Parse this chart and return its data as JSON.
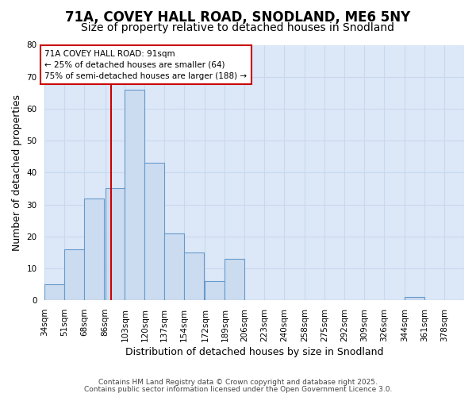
{
  "title1": "71A, COVEY HALL ROAD, SNODLAND, ME6 5NY",
  "title2": "Size of property relative to detached houses in Snodland",
  "xlabel": "Distribution of detached houses by size in Snodland",
  "ylabel": "Number of detached properties",
  "bin_labels": [
    "34sqm",
    "51sqm",
    "68sqm",
    "86sqm",
    "103sqm",
    "120sqm",
    "137sqm",
    "154sqm",
    "172sqm",
    "189sqm",
    "206sqm",
    "223sqm",
    "240sqm",
    "258sqm",
    "275sqm",
    "292sqm",
    "309sqm",
    "326sqm",
    "344sqm",
    "361sqm",
    "378sqm"
  ],
  "bin_left_edges": [
    34,
    51,
    68,
    86,
    103,
    120,
    137,
    154,
    172,
    189,
    206,
    223,
    240,
    258,
    275,
    292,
    309,
    326,
    344,
    361,
    378
  ],
  "bin_widths": [
    17,
    17,
    17,
    17,
    17,
    17,
    17,
    17,
    17,
    17,
    17,
    17,
    17,
    17,
    17,
    17,
    17,
    17,
    17,
    17,
    17
  ],
  "bar_heights": [
    5,
    16,
    32,
    35,
    66,
    43,
    21,
    15,
    6,
    13,
    0,
    0,
    0,
    0,
    0,
    0,
    0,
    0,
    1,
    0,
    0
  ],
  "bar_color": "#ccdcf0",
  "bar_edge_color": "#6699cc",
  "property_size": 91,
  "vline_color": "#cc0000",
  "annotation_line1": "71A COVEY HALL ROAD: 91sqm",
  "annotation_line2": "← 25% of detached houses are smaller (64)",
  "annotation_line3": "75% of semi-detached houses are larger (188) →",
  "annotation_box_facecolor": "#ffffff",
  "annotation_box_edgecolor": "#cc0000",
  "ylim": [
    0,
    80
  ],
  "yticks": [
    0,
    10,
    20,
    30,
    40,
    50,
    60,
    70,
    80
  ],
  "grid_color": "#c8d8ee",
  "plot_bg_color": "#dce8f8",
  "figure_bg_color": "#ffffff",
  "footer1": "Contains HM Land Registry data © Crown copyright and database right 2025.",
  "footer2": "Contains public sector information licensed under the Open Government Licence 3.0.",
  "title_fontsize": 12,
  "subtitle_fontsize": 10,
  "axis_label_fontsize": 9,
  "tick_fontsize": 7.5
}
